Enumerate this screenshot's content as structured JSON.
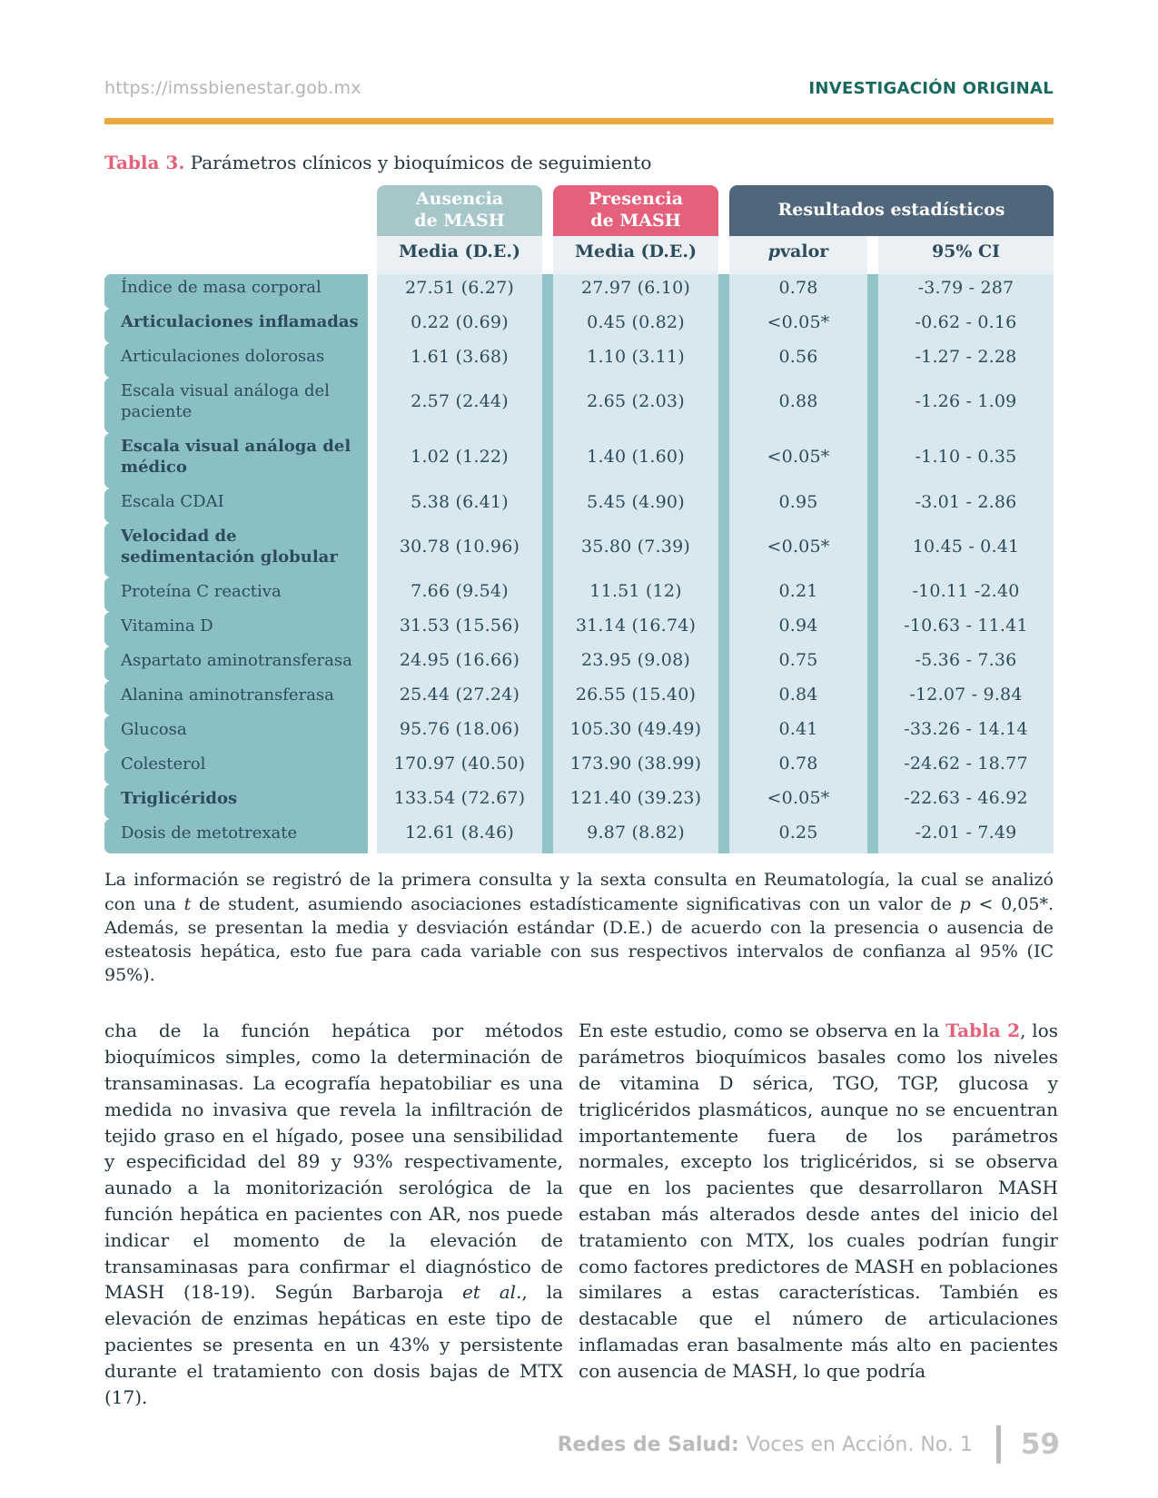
{
  "header": {
    "url": "https://imssbienestar.gob.mx",
    "section": "INVESTIGACIÓN ORIGINAL"
  },
  "table": {
    "title_label": "Tabla 3.",
    "title_text": " Parámetros clínicos y bioquímicos de seguimiento",
    "col_headers": {
      "absence": "Ausencia\nde MASH",
      "presence": "Presencia\nde MASH",
      "stats": "Resultados estadísticos"
    },
    "subheaders": {
      "absence": "Media (D.E.)",
      "presence": "Media (D.E.)",
      "p_italic": "p",
      "p_rest": " valor",
      "ci": "95% CI"
    },
    "rows": [
      {
        "label": "Índice de masa corporal",
        "bold": false,
        "tall": false,
        "absence": "27.51 (6.27)",
        "presence": "27.97 (6.10)",
        "p": "0.78",
        "ci": "-3.79 - 287"
      },
      {
        "label": "Articulaciones inflamadas",
        "bold": true,
        "tall": false,
        "absence": "0.22 (0.69)",
        "presence": "0.45 (0.82)",
        "p": "<0.05*",
        "ci": "-0.62 - 0.16"
      },
      {
        "label": "Articulaciones dolorosas",
        "bold": false,
        "tall": false,
        "absence": "1.61 (3.68)",
        "presence": "1.10 (3.11)",
        "p": "0.56",
        "ci": "-1.27 - 2.28"
      },
      {
        "label": "Escala visual análoga del paciente",
        "bold": false,
        "tall": true,
        "absence": "2.57 (2.44)",
        "presence": "2.65 (2.03)",
        "p": "0.88",
        "ci": "-1.26 - 1.09"
      },
      {
        "label": "Escala visual análoga del médico",
        "bold": true,
        "tall": true,
        "absence": "1.02 (1.22)",
        "presence": "1.40 (1.60)",
        "p": "<0.05*",
        "ci": "-1.10 - 0.35"
      },
      {
        "label": "Escala CDAI",
        "bold": false,
        "tall": false,
        "absence": "5.38 (6.41)",
        "presence": "5.45 (4.90)",
        "p": "0.95",
        "ci": "-3.01 - 2.86"
      },
      {
        "label": "Velocidad de sedimentación globular",
        "bold": true,
        "tall": true,
        "absence": "30.78 (10.96)",
        "presence": "35.80 (7.39)",
        "p": "<0.05*",
        "ci": "10.45 - 0.41"
      },
      {
        "label": "Proteína C reactiva",
        "bold": false,
        "tall": false,
        "absence": "7.66 (9.54)",
        "presence": "11.51 (12)",
        "p": "0.21",
        "ci": "-10.11 -2.40"
      },
      {
        "label": "Vitamina D",
        "bold": false,
        "tall": false,
        "absence": "31.53 (15.56)",
        "presence": "31.14 (16.74)",
        "p": "0.94",
        "ci": "-10.63 - 11.41"
      },
      {
        "label": "Aspartato aminotransferasa",
        "bold": false,
        "tall": false,
        "absence": "24.95 (16.66)",
        "presence": "23.95 (9.08)",
        "p": "0.75",
        "ci": "-5.36 - 7.36"
      },
      {
        "label": "Alanina aminotransferasa",
        "bold": false,
        "tall": false,
        "absence": "25.44 (27.24)",
        "presence": "26.55 (15.40)",
        "p": "0.84",
        "ci": "-12.07 - 9.84"
      },
      {
        "label": "Glucosa",
        "bold": false,
        "tall": false,
        "absence": "95.76 (18.06)",
        "presence": "105.30 (49.49)",
        "p": "0.41",
        "ci": "-33.26 - 14.14"
      },
      {
        "label": "Colesterol",
        "bold": false,
        "tall": false,
        "absence": "170.97 (40.50)",
        "presence": "173.90 (38.99)",
        "p": "0.78",
        "ci": "-24.62 - 18.77"
      },
      {
        "label": "Triglicéridos",
        "bold": true,
        "tall": false,
        "absence": "133.54 (72.67)",
        "presence": "121.40 (39.23)",
        "p": "<0.05*",
        "ci": "-22.63 - 46.92"
      },
      {
        "label": "Dosis de metotrexate",
        "bold": false,
        "tall": false,
        "absence": "12.61 (8.46)",
        "presence": "9.87 (8.82)",
        "p": "0.25",
        "ci": "-2.01 - 7.49"
      }
    ],
    "footnote": {
      "p1": "La información se registró de la primera consulta y la sexta consulta en Reumatología, la cual se analizó con una ",
      "i1": "t",
      "p2": " de student, asumiendo asociaciones estadísticamente significativas con un valor de ",
      "i2": "p",
      "p3": " < 0,05*. Además, se presentan la media y desviación estándar (D.E.) de acuerdo con la presencia o ausencia de esteatosis hepática, esto fue para cada variable con sus respectivos intervalos de confianza al 95% (IC 95%)."
    }
  },
  "body": {
    "left": {
      "p1": "cha de la función hepática por métodos bioquímicos simples, como la determinación de transaminasas. La ecografía hepatobiliar es una medida no invasiva que revela la infiltración de tejido graso en el hígado, posee una sensibilidad y especificidad del 89 y 93% respectivamente, aunado a la monitorización serológica de la función hepática en pacientes con AR, nos puede indicar el momento de la elevación de transaminasas para confirmar el diagnóstico de MASH (18-19). Según Barbaroja ",
      "i1": "et al",
      "p2": "., la elevación de enzimas hepáticas en este tipo de pacientes se presenta en un 43% y persistente durante el tratamiento con dosis bajas de MTX (17)."
    },
    "right": {
      "p1": "En este estudio, como se observa en la ",
      "link": "Tabla 2",
      "p2": ", los parámetros bioquímicos basales como los niveles de vitamina D sérica, TGO, TGP, glucosa y triglicéridos plasmáticos, aunque no se encuentran importantemente fuera de los parámetros normales, excepto los triglicéridos, si se observa que en los pacientes que desarrollaron MASH estaban más alterados desde antes del inicio del tratamiento con MTX, los cuales podrían fungir como factores predictores de MASH en poblaciones similares a estas características. También es destacable que el número de articulaciones inflamadas eran basalmente más alto en pacientes con ausencia de MASH, lo que podría"
    }
  },
  "footer": {
    "brand": "Redes de Salud:",
    "subtitle": "Voces en Acción. No. 1",
    "page": "59"
  },
  "colors": {
    "accent_pink": "#e5607a",
    "label_teal": "#8abfc3",
    "header_teal": "#a6c6c9",
    "stats_slate": "#50677b",
    "cell_blue": "#d8e8ee",
    "divider_teal": "#92c5c8",
    "rule_orange": "#efa73f",
    "section_green": "#17695d",
    "table_text": "#2c4b5c",
    "footer_gray": "#b9baba"
  }
}
